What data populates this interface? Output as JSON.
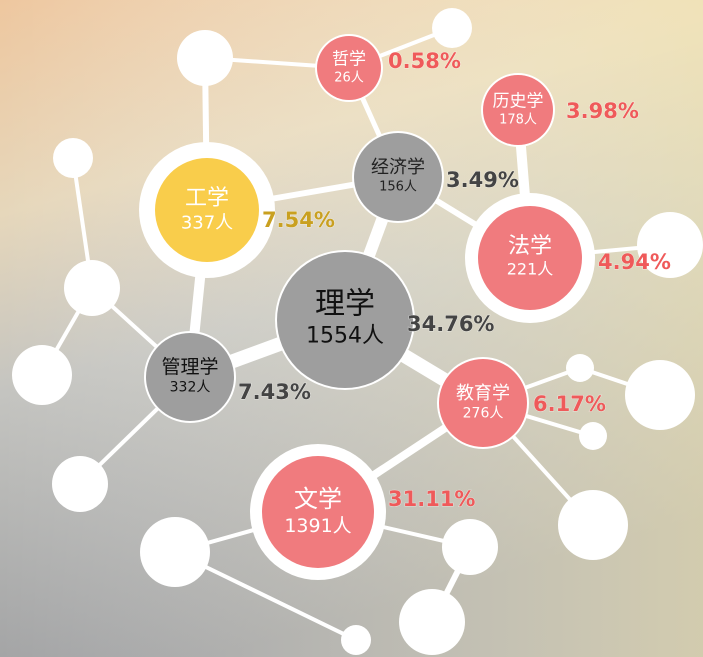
{
  "nodes": [
    {
      "name": "哲学",
      "count": "26人",
      "percent": "0.58%"
    },
    {
      "name": "历史学",
      "count": "178人",
      "percent": "3.98%"
    },
    {
      "name": "经济学",
      "count": "156人",
      "percent": "3.49%"
    },
    {
      "name": "工学",
      "count": "337人",
      "percent": "7.54%"
    },
    {
      "name": "法学",
      "count": "221人",
      "percent": "4.94%"
    },
    {
      "name": "理学",
      "count": "1554人",
      "percent": "34.76%"
    },
    {
      "name": "管理学",
      "count": "332人",
      "percent": "7.43%"
    },
    {
      "name": "教育学",
      "count": "276人",
      "percent": "6.17%"
    },
    {
      "name": "文学",
      "count": "1391人",
      "percent": "31.11%"
    }
  ]
}
